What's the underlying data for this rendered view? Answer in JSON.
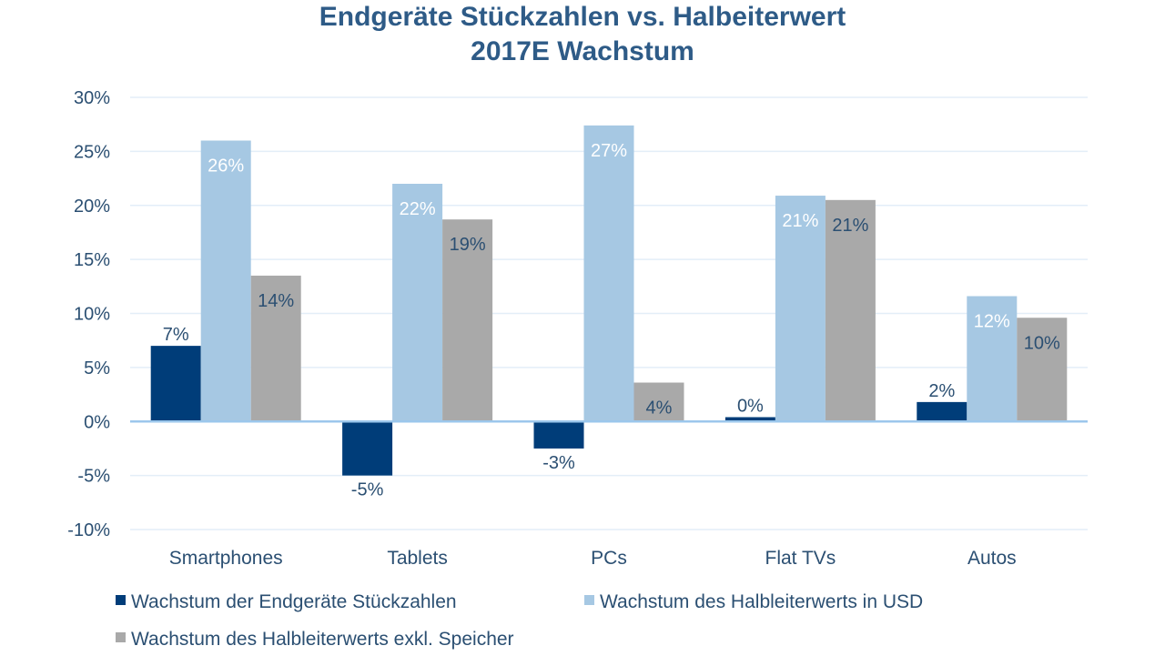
{
  "chart_data": {
    "type": "bar",
    "title": "Endgeräte Stückzahlen vs. Halbeiterwert",
    "subtitle": "2017E Wachstum",
    "categories": [
      "Smartphones",
      "Tablets",
      "PCs",
      "Flat TVs",
      "Autos"
    ],
    "series": [
      {
        "name": "Wachstum der Endgeräte Stückzahlen",
        "color": "#003d79",
        "values": [
          7,
          -5,
          -2.5,
          0.4,
          1.8
        ],
        "labels": [
          "7%",
          "-5%",
          "-3%",
          "0%",
          "2%"
        ],
        "label_color": "#2b4f72"
      },
      {
        "name": "Wachstum des Halbleiterwerts in USD",
        "color": "#a6c8e3",
        "values": [
          26,
          22,
          27.4,
          20.9,
          11.6
        ],
        "labels": [
          "26%",
          "22%",
          "27%",
          "21%",
          "12%"
        ],
        "label_color": "#ffffff"
      },
      {
        "name": "Wachstum des Halbleiterwerts exkl. Speicher",
        "color": "#a9a9a9",
        "values": [
          13.5,
          18.7,
          3.6,
          20.5,
          9.6
        ],
        "labels": [
          "14%",
          "19%",
          "4%",
          "21%",
          "10%"
        ],
        "label_color": "#2b4f72"
      }
    ],
    "ylim": [
      -10,
      30
    ],
    "yticks": [
      30,
      25,
      20,
      15,
      10,
      5,
      0,
      -5,
      -10
    ],
    "ytick_labels": [
      "30%",
      "25%",
      "20%",
      "15%",
      "10%",
      "5%",
      "0%",
      "-5%",
      "-10%"
    ],
    "xlabel": "",
    "ylabel": "",
    "grid": true,
    "legend_position": "bottom"
  }
}
